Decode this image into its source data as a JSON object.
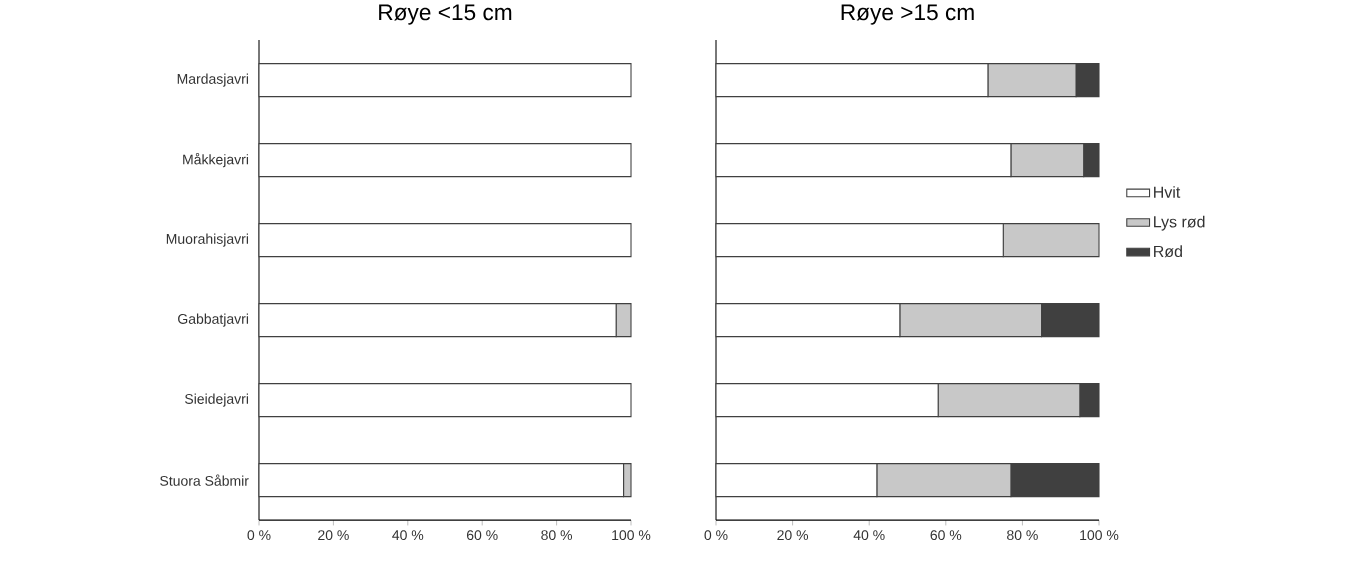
{
  "chart_data": [
    {
      "type": "bar",
      "orientation": "horizontal",
      "stacked": true,
      "title": "Røye <15 cm",
      "categories": [
        "Mardasjavri",
        "Måkkejavri",
        "Muorahisjavri",
        "Gabbatjavri",
        "Sieidejavri",
        "Stuora Såbmir"
      ],
      "series": [
        {
          "color": "#ffffff",
          "values": [
            100,
            100,
            100,
            96,
            100,
            98
          ]
        },
        {
          "color": "#c8c8c8",
          "values": [
            0,
            0,
            0,
            4,
            0,
            2
          ]
        },
        {
          "color": "#404040",
          "values": [
            0,
            0,
            0,
            0,
            0,
            0
          ]
        }
      ],
      "xlim": [
        0,
        100
      ],
      "xticks": [
        {
          "value": 0,
          "label": "0 %"
        },
        {
          "value": 20,
          "label": "20 %"
        },
        {
          "value": 40,
          "label": "40 %"
        },
        {
          "value": 60,
          "label": "60 %"
        },
        {
          "value": 80,
          "label": "80 %"
        },
        {
          "value": 100,
          "label": "100 %"
        }
      ],
      "grid": false,
      "legend": false
    },
    {
      "type": "bar",
      "orientation": "horizontal",
      "stacked": true,
      "title": "Røye >15 cm",
      "categories": [
        null,
        null,
        null,
        null,
        null,
        null
      ],
      "series": [
        {
          "name": "Hvit",
          "color": "#ffffff",
          "values": [
            71,
            77,
            75,
            48,
            58,
            42
          ]
        },
        {
          "name": "Lys rød",
          "color": "#c8c8c8",
          "values": [
            23,
            19,
            25,
            37,
            37,
            35
          ]
        },
        {
          "name": "Rød",
          "color": "#404040",
          "values": [
            6,
            4,
            0,
            15,
            5,
            23
          ]
        }
      ],
      "xlim": [
        0,
        100
      ],
      "xticks": [
        {
          "value": 0,
          "label": "0 %"
        },
        {
          "value": 20,
          "label": "20 %"
        },
        {
          "value": 40,
          "label": "40 %"
        },
        {
          "value": 60,
          "label": "60 %"
        },
        {
          "value": 80,
          "label": "80 %"
        },
        {
          "value": 100,
          "label": "100 %"
        }
      ],
      "tick_labels": "x",
      "grid": false,
      "legend": "right"
    }
  ]
}
